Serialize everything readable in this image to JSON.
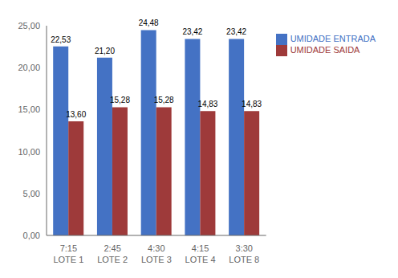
{
  "chart_data": {
    "type": "bar",
    "categories": [
      "7:15\nLOTE 1",
      "2:45\nLOTE 2",
      "4:30\nLOTE 3",
      "4:15\nLOTE 4",
      "3:30\nLOTE 8"
    ],
    "series": [
      {
        "name": "UMIDADE ENTRADA",
        "color": "#4472C4",
        "values": [
          22.53,
          21.2,
          24.48,
          23.42,
          23.42
        ],
        "value_labels": [
          "22,53",
          "21,20",
          "24,48",
          "23,42",
          "23,42"
        ]
      },
      {
        "name": "UMIDADE SAIDA",
        "color": "#9E3A3A",
        "values": [
          13.6,
          15.28,
          15.28,
          14.83,
          14.83
        ],
        "value_labels": [
          "13,60",
          "15,28",
          "15,28",
          "14,83",
          "14,83"
        ]
      }
    ],
    "ylim": [
      0,
      25.0
    ],
    "yticks": [
      {
        "value": 0.0,
        "label": "0,00"
      },
      {
        "value": 5.0,
        "label": "5,00"
      },
      {
        "value": 10.0,
        "label": "10,00"
      },
      {
        "value": 15.0,
        "label": "15,00"
      },
      {
        "value": 20.0,
        "label": "20,00"
      },
      {
        "value": 25.0,
        "label": "25,00"
      }
    ],
    "grid": false,
    "legend": "right",
    "data_labels": true
  }
}
